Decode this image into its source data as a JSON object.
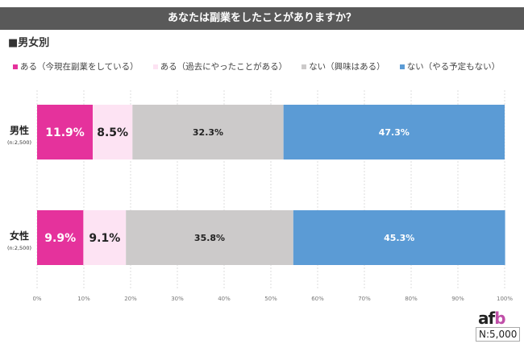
{
  "chart_data": {
    "type": "bar",
    "stacked": true,
    "orientation": "horizontal",
    "title": "あなたは副業をしたことがありますか？",
    "subtitle": "■男女別",
    "categories": [
      {
        "label": "男性",
        "n": "(n:2,500)"
      },
      {
        "label": "女性",
        "n": "(n:2,500)"
      }
    ],
    "series": [
      {
        "name": "ある（今現在副業をしている）",
        "color": "#e5329c",
        "text_color": "#ffffff",
        "values": [
          11.9,
          9.9
        ]
      },
      {
        "name": "ある（過去にやったことがある）",
        "color": "#fde3f3",
        "text_color": "#222222",
        "values": [
          8.5,
          9.1
        ]
      },
      {
        "name": "ない（興味はある）",
        "color": "#cccaca",
        "text_color": "#222222",
        "values": [
          32.3,
          35.8
        ]
      },
      {
        "name": "ない（やる予定もない）",
        "color": "#5b9bd5",
        "text_color": "#ffffff",
        "values": [
          47.3,
          45.3
        ]
      }
    ],
    "xticks": [
      "0%",
      "10%",
      "20%",
      "30%",
      "40%",
      "50%",
      "60%",
      "70%",
      "80%",
      "90%",
      "100%"
    ],
    "xlim": [
      0,
      100
    ],
    "grid": true,
    "legend": "top"
  },
  "logo": "afb",
  "sample": "N:5,000"
}
